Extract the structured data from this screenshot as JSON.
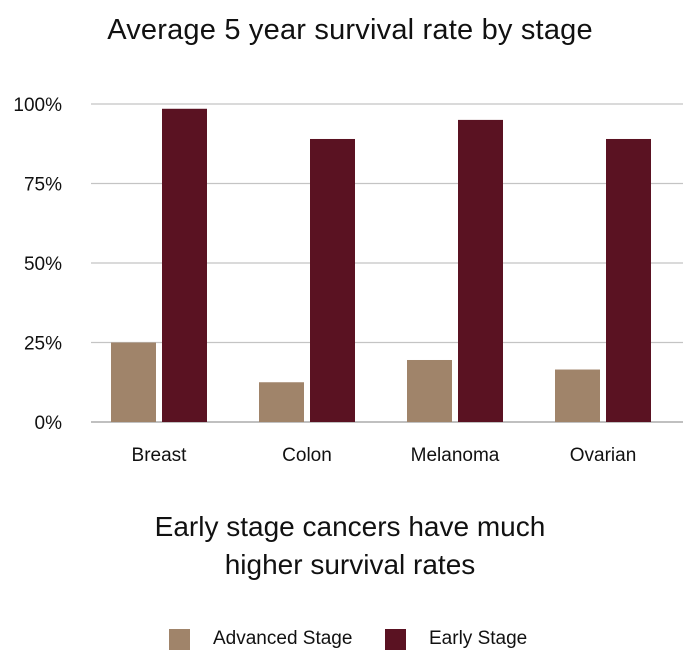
{
  "chart_data": {
    "type": "bar",
    "title": "Average 5 year survival rate by stage",
    "subtitle_lines": [
      "Early stage cancers have much",
      "higher survival rates"
    ],
    "categories": [
      "Breast",
      "Colon",
      "Melanoma",
      "Ovarian"
    ],
    "series": [
      {
        "name": "Advanced Stage",
        "color": "#a0846a",
        "values": [
          25,
          12.5,
          19.5,
          16.5
        ]
      },
      {
        "name": "Early Stage",
        "color": "#5a1222",
        "values": [
          98.5,
          89,
          95,
          89
        ]
      }
    ],
    "y_ticks": [
      "0%",
      "25%",
      "50%",
      "75%",
      "100%"
    ],
    "ylim": [
      0,
      100
    ],
    "grid": true,
    "legend_position": "bottom-center",
    "xlabel": "",
    "ylabel": ""
  }
}
